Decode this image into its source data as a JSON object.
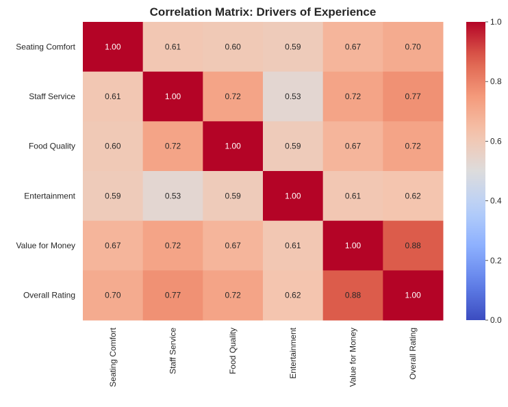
{
  "chart_data": {
    "type": "heatmap",
    "title": "Correlation Matrix: Drivers of Experience",
    "row_labels": [
      "Seating Comfort",
      "Staff Service",
      "Food Quality",
      "Entertainment",
      "Value for Money",
      "Overall Rating"
    ],
    "col_labels": [
      "Seating Comfort",
      "Staff Service",
      "Food Quality",
      "Entertainment",
      "Value for Money",
      "Overall Rating"
    ],
    "values": [
      [
        1.0,
        0.61,
        0.6,
        0.59,
        0.67,
        0.7
      ],
      [
        0.61,
        1.0,
        0.72,
        0.53,
        0.72,
        0.77
      ],
      [
        0.6,
        0.72,
        1.0,
        0.59,
        0.67,
        0.72
      ],
      [
        0.59,
        0.53,
        0.59,
        1.0,
        0.61,
        0.62
      ],
      [
        0.67,
        0.72,
        0.67,
        0.61,
        1.0,
        0.88
      ],
      [
        0.7,
        0.77,
        0.72,
        0.62,
        0.88,
        1.0
      ]
    ],
    "annotation_format": "0.00",
    "colormap": "coolwarm",
    "vmin": 0.0,
    "vmax": 1.0,
    "colorbar_ticks": [
      "0.0",
      "0.2",
      "0.4",
      "0.6",
      "0.8",
      "1.0"
    ],
    "colors": {
      "low": "#3b4cc0",
      "mid": "#dddddd",
      "high": "#b40426"
    }
  }
}
